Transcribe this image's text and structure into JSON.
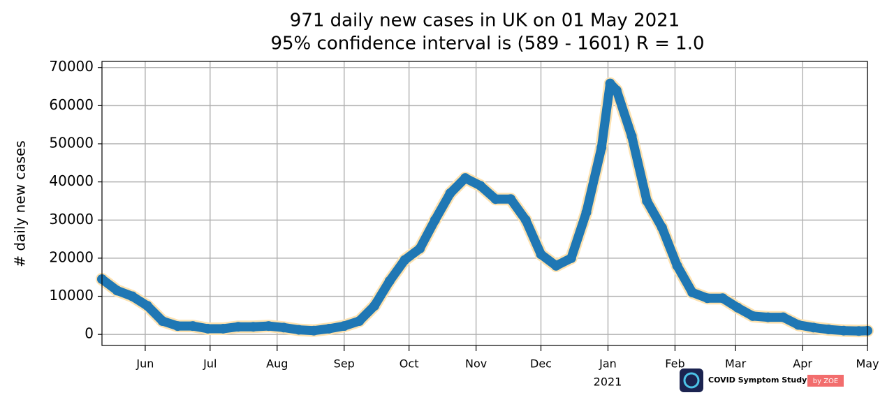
{
  "chart_data": {
    "type": "line",
    "title": "971 daily new cases in UK on 01 May 2021",
    "subtitle": "95% confidence interval is (589 - 1601) R = 1.0",
    "y_label": "# daily new cases",
    "color": "#1f77b4",
    "grid": true,
    "x_year_label": "2021",
    "logo": {
      "text": "COVID Symptom Study",
      "by": "by ZOE"
    },
    "xlim": [
      "2020-05-12",
      "2021-05-01"
    ],
    "xticks": [
      {
        "value": "2020-06-01",
        "label": "Jun"
      },
      {
        "value": "2020-07-01",
        "label": "Jul"
      },
      {
        "value": "2020-08-01",
        "label": "Aug"
      },
      {
        "value": "2020-09-01",
        "label": "Sep"
      },
      {
        "value": "2020-10-01",
        "label": "Oct"
      },
      {
        "value": "2020-11-01",
        "label": "Nov"
      },
      {
        "value": "2020-12-01",
        "label": "Dec"
      },
      {
        "value": "2021-01-01",
        "label": "Jan"
      },
      {
        "value": "2021-02-01",
        "label": "Feb"
      },
      {
        "value": "2021-03-01",
        "label": "Mar"
      },
      {
        "value": "2021-04-01",
        "label": "Apr"
      },
      {
        "value": "2021-05-01",
        "label": "May"
      }
    ],
    "ylim": [
      -2900,
      71600
    ],
    "yticks": [
      0,
      10000,
      20000,
      30000,
      40000,
      50000,
      60000,
      70000
    ],
    "x": [
      "2020-05-12",
      "2020-05-19",
      "2020-05-26",
      "2020-06-02",
      "2020-06-09",
      "2020-06-16",
      "2020-06-23",
      "2020-06-30",
      "2020-07-07",
      "2020-07-14",
      "2020-07-21",
      "2020-07-28",
      "2020-08-04",
      "2020-08-11",
      "2020-08-18",
      "2020-08-25",
      "2020-09-01",
      "2020-09-08",
      "2020-09-15",
      "2020-09-22",
      "2020-09-29",
      "2020-10-06",
      "2020-10-13",
      "2020-10-20",
      "2020-10-27",
      "2020-11-03",
      "2020-11-10",
      "2020-11-17",
      "2020-11-24",
      "2020-12-01",
      "2020-12-08",
      "2020-12-15",
      "2020-12-22",
      "2020-12-29",
      "2021-01-02",
      "2021-01-05",
      "2021-01-12",
      "2021-01-19",
      "2021-01-26",
      "2021-02-02",
      "2021-02-09",
      "2021-02-16",
      "2021-02-23",
      "2021-03-02",
      "2021-03-09",
      "2021-03-16",
      "2021-03-23",
      "2021-03-30",
      "2021-04-06",
      "2021-04-13",
      "2021-04-20",
      "2021-04-27",
      "2021-05-01"
    ],
    "series": [
      {
        "name": "daily new cases",
        "color": "#1f77b4",
        "values": [
          14500,
          11500,
          10000,
          7500,
          3500,
          2200,
          2200,
          1500,
          1500,
          2000,
          2000,
          2200,
          1800,
          1200,
          1000,
          1500,
          2200,
          3500,
          7500,
          14000,
          19500,
          22500,
          30000,
          37000,
          41000,
          39000,
          35500,
          35500,
          30000,
          21000,
          18000,
          20000,
          32000,
          49000,
          65800,
          64000,
          52000,
          35000,
          28000,
          18000,
          11000,
          9500,
          9500,
          7000,
          4800,
          4500,
          4500,
          2500,
          1800,
          1300,
          1000,
          900,
          971
        ]
      }
    ]
  }
}
